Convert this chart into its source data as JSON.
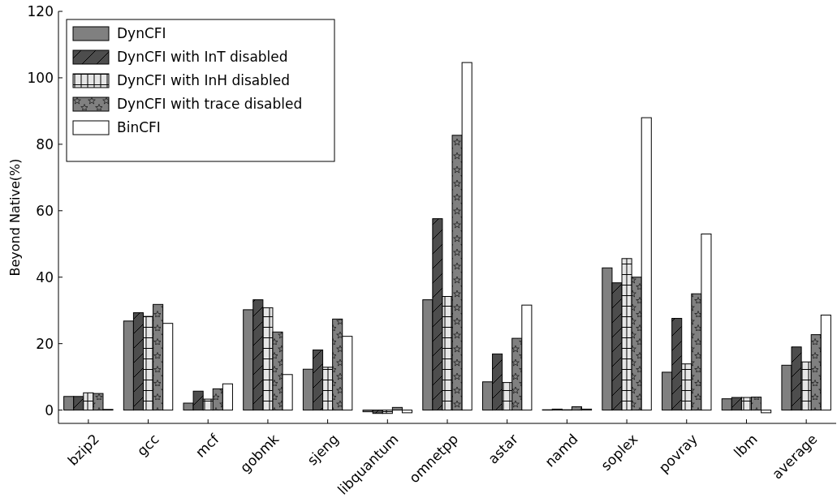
{
  "chart_data": {
    "type": "bar",
    "ylabel": "Beyond Native(%)",
    "categories": [
      "bzip2",
      "gcc",
      "mcf",
      "gobmk",
      "sjeng",
      "libquantum",
      "omnetpp",
      "astar",
      "namd",
      "soplex",
      "povray",
      "lbm",
      "average"
    ],
    "series": [
      {
        "name": "DynCFI",
        "color": "#808080",
        "values": [
          4.1,
          26.8,
          2.1,
          30.2,
          12.3,
          -0.5,
          33.2,
          8.5,
          0.1,
          42.8,
          11.4,
          3.4,
          13.5
        ]
      },
      {
        "name": "DynCFI with InT disabled",
        "color": "#4d4d4d",
        "values": [
          4.1,
          29.3,
          5.7,
          33.2,
          18.1,
          -1.0,
          57.6,
          16.9,
          0.3,
          38.3,
          27.6,
          3.8,
          19.0
        ]
      },
      {
        "name": "DynCFI with InH disabled",
        "color": "#e6e6e6",
        "values": [
          5.2,
          28.2,
          3.3,
          30.8,
          12.9,
          -1.0,
          34.2,
          8.3,
          0.1,
          45.6,
          13.9,
          3.8,
          14.5
        ]
      },
      {
        "name": "DynCFI with trace disabled",
        "color": "#808080",
        "values": [
          5.0,
          31.8,
          6.4,
          23.5,
          27.4,
          0.8,
          82.7,
          21.6,
          1.0,
          40.0,
          35.0,
          3.9,
          22.7
        ]
      },
      {
        "name": "BinCFI",
        "color": "#ffffff",
        "values": [
          0.2,
          26.1,
          7.9,
          10.7,
          22.2,
          -0.8,
          104.6,
          31.6,
          0.3,
          88.0,
          53.0,
          -0.8,
          28.6
        ]
      }
    ],
    "ylim": [
      -4,
      120
    ],
    "yticks": [
      0,
      20,
      40,
      60,
      80,
      100,
      120
    ],
    "grid": false,
    "legend": "top left"
  }
}
